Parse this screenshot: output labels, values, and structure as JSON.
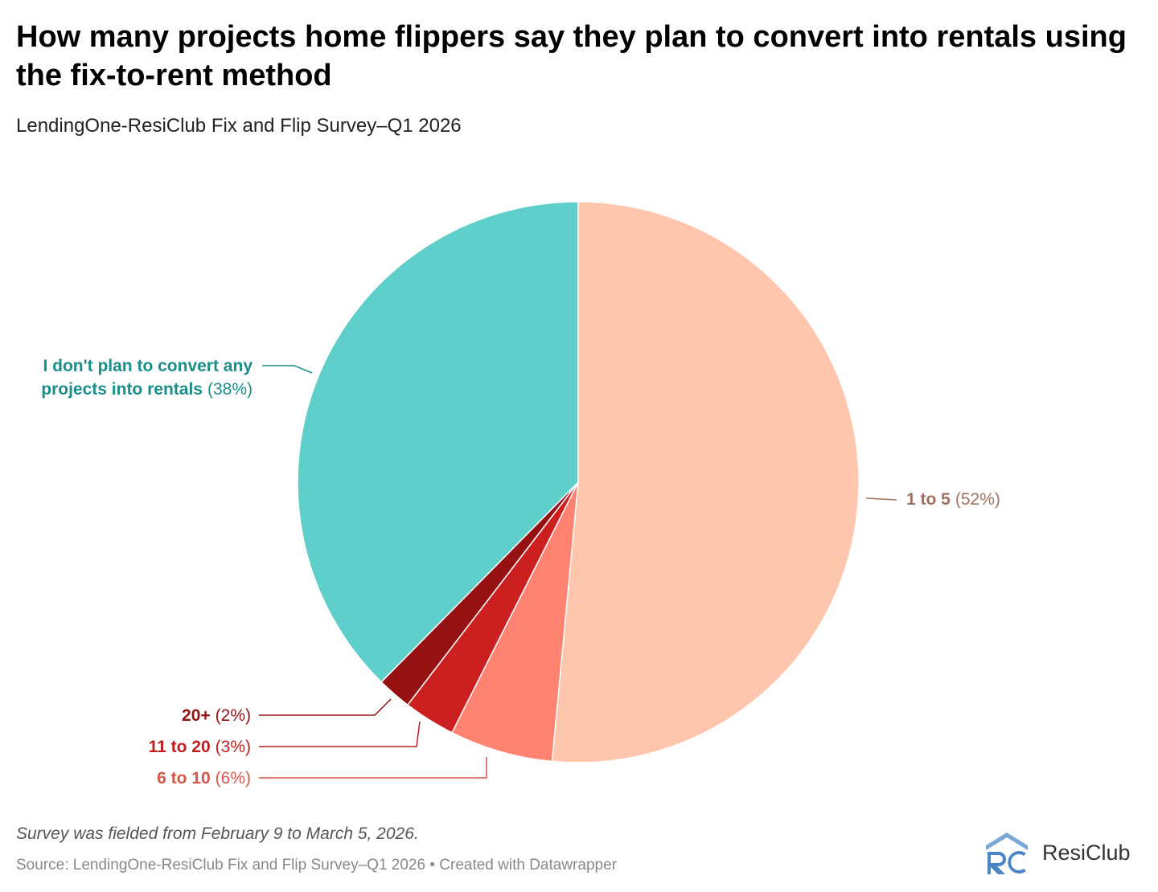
{
  "title": "How many projects home flippers say they plan to convert into rentals using the fix-to-rent method",
  "subtitle": "LendingOne-ResiClub Fix and Flip Survey–Q1 2026",
  "note": "Survey was fielded from February 9 to March 5, 2026.",
  "source": "Source: LendingOne-ResiClub Fix and Flip Survey–Q1 2026 • Created with Datawrapper",
  "logo": {
    "text": "ResiClub",
    "mark_color": "#4a86c5"
  },
  "chart_data": {
    "type": "pie",
    "slices": [
      {
        "label": "1 to 5",
        "pct_text": "(52%)",
        "value": 52,
        "color": "#ffc6ae",
        "label_color": "#a07060"
      },
      {
        "label": "6 to 10",
        "pct_text": "(6%)",
        "value": 6,
        "color": "#ff8370",
        "label_color": "#d9564a"
      },
      {
        "label": "11 to 20",
        "pct_text": "(3%)",
        "value": 3,
        "color": "#cc1f1f",
        "label_color": "#c01e1e"
      },
      {
        "label": "20+",
        "pct_text": "(2%)",
        "value": 2,
        "color": "#961212",
        "label_color": "#961212"
      },
      {
        "label": "I don't plan to convert any projects into rentals",
        "pct_text": "(38%)",
        "value": 38,
        "color": "#5ecfca",
        "label_color": "#1a8e8a"
      }
    ]
  }
}
